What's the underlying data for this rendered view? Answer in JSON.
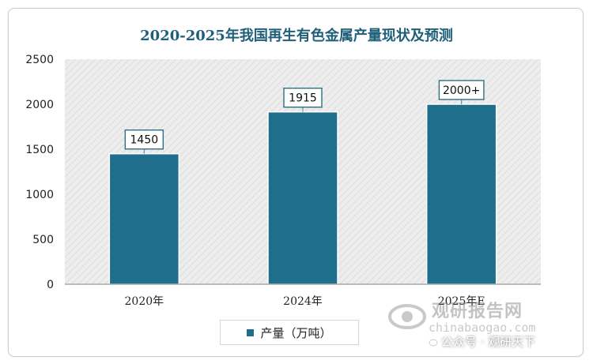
{
  "chart_data": {
    "type": "bar",
    "title": "2020-2025年我国再生有色金属产量现状及预测",
    "categories": [
      "2020年",
      "2024年",
      "2025年E"
    ],
    "series": [
      {
        "name": "产量（万吨）",
        "values": [
          1450,
          1915,
          2000
        ],
        "labels": [
          "1450",
          "1915",
          "2000+"
        ]
      }
    ],
    "ylim": [
      0,
      2500
    ],
    "yticks": [
      0,
      500,
      1000,
      1500,
      2000,
      2500
    ],
    "grid": false,
    "legend": "bottom",
    "colors": {
      "bar": "#1f6e8c",
      "title": "#1f5f7a",
      "plot_bg": "#ececec"
    }
  },
  "watermark": {
    "brand": "观研报告网",
    "url": "chinabaogao.com",
    "wechat": "公众号 · 观研天下"
  }
}
